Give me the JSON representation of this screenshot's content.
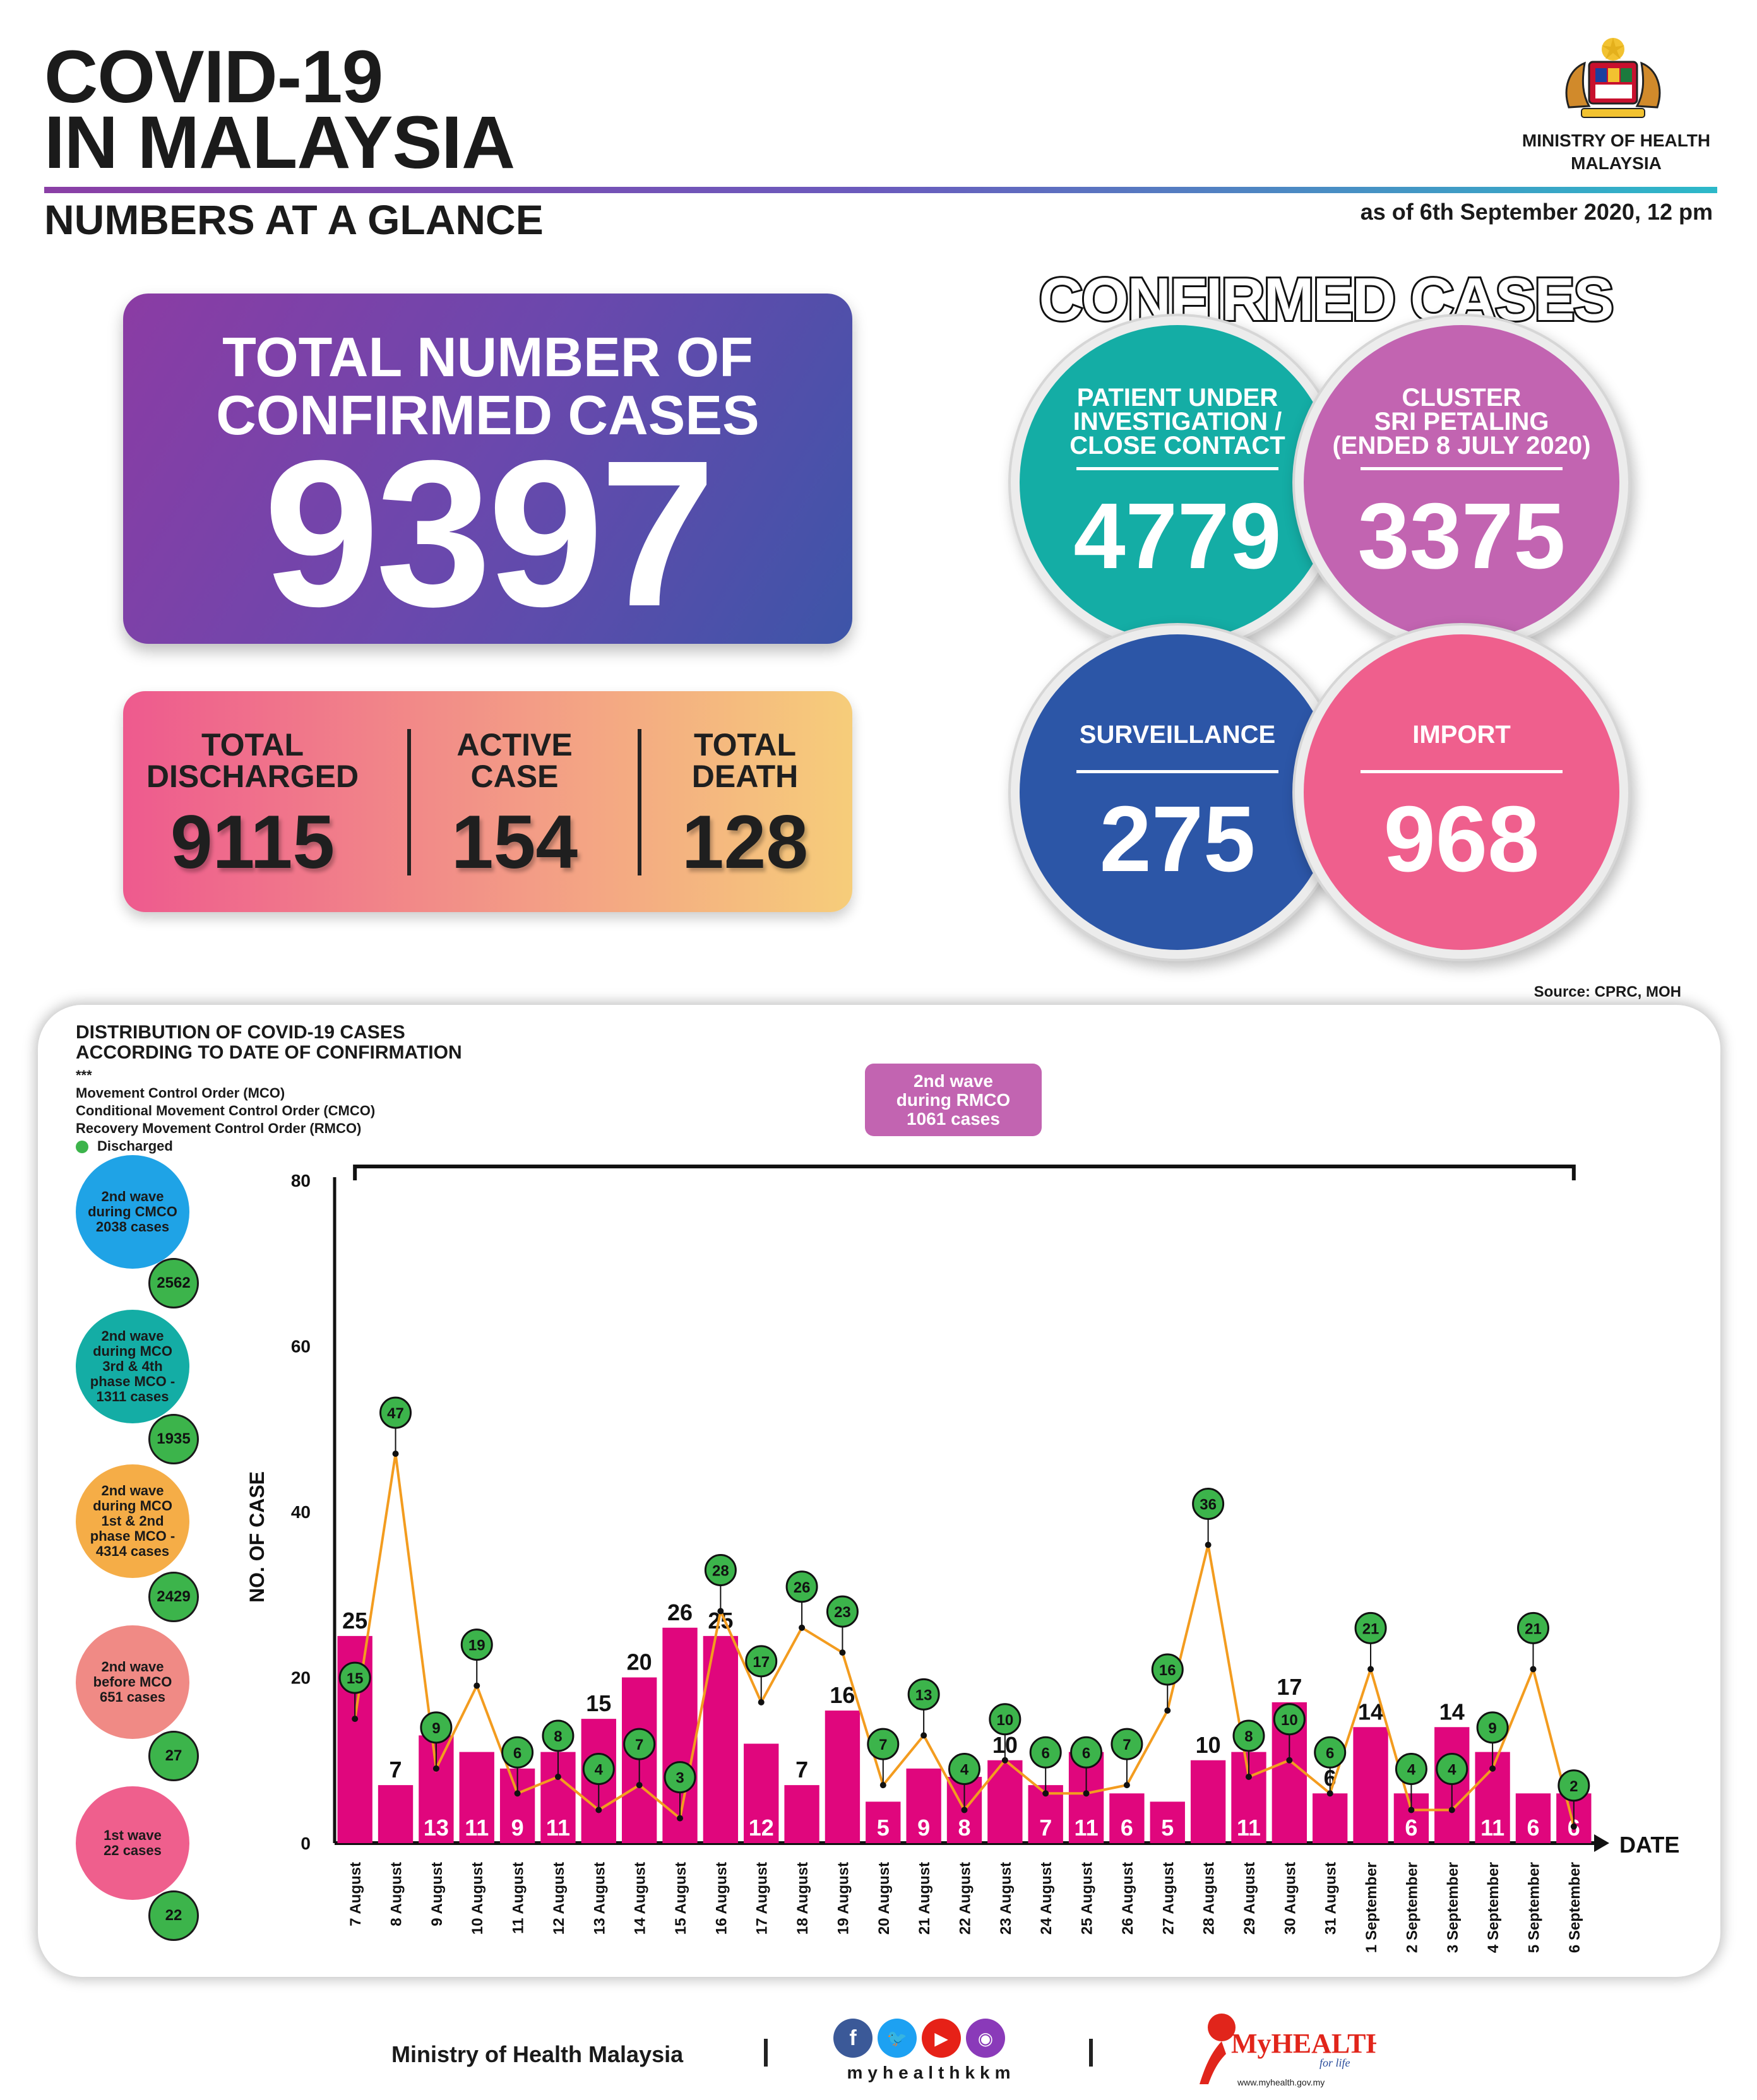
{
  "header": {
    "title": "COVID-19\nIN MALAYSIA",
    "subtitle": "NUMBERS AT A GLANCE",
    "ministry": "MINISTRY OF HEALTH\nMALAYSIA",
    "as_of": "as of 6th September 2020, 12 pm"
  },
  "total": {
    "label": "TOTAL NUMBER OF\nCONFIRMED CASES",
    "value": "9397"
  },
  "stats": [
    {
      "label": "TOTAL\nDISCHARGED",
      "value": "9115"
    },
    {
      "label": "ACTIVE\nCASE",
      "value": "154"
    },
    {
      "label": "TOTAL\nDEATH",
      "value": "128"
    }
  ],
  "confirmed_cases": {
    "title": "CONFIRMED CASES",
    "items": [
      {
        "label": "PATIENT UNDER\nINVESTIGATION /\nCLOSE CONTACT",
        "value": "4779",
        "color": "#14ada5"
      },
      {
        "label": "CLUSTER\nSRI PETALING\n(ENDED 8 JULY 2020)",
        "value": "3375",
        "color": "#c264b1"
      },
      {
        "label": "SURVEILLANCE",
        "value": "275",
        "color": "#2c56a7"
      },
      {
        "label": "IMPORT",
        "value": "968",
        "color": "#ef5f8d"
      }
    ]
  },
  "source": "Source: CPRC, MOH",
  "distribution": {
    "title": "DISTRIBUTION OF COVID-19 CASES\nACCORDING TO DATE OF CONFIRMATION",
    "legend": [
      "***",
      "Movement Control Order (MCO)",
      "Conditional Movement Control Order (CMCO)",
      "Recovery Movement Control Order (RMCO)",
      "Discharged"
    ],
    "waves": [
      {
        "label": "2nd wave\nduring CMCO\n2038 cases",
        "discharged": "2562",
        "color": "#1fa3e6"
      },
      {
        "label": "2nd wave\nduring MCO\n3rd & 4th\nphase MCO -\n1311 cases",
        "discharged": "1935",
        "color": "#14ada5"
      },
      {
        "label": "2nd wave\nduring MCO\n1st & 2nd\nphase MCO -\n4314 cases",
        "discharged": "2429",
        "color": "#f5ad47"
      },
      {
        "label": "2nd wave\nbefore MCO\n651 cases",
        "discharged": "27",
        "color": "#f08a85"
      },
      {
        "label": "1st wave\n22 cases",
        "discharged": "22",
        "color": "#ef5f8d"
      }
    ],
    "rmco_box": "2nd wave\nduring RMCO\n1061 cases"
  },
  "chart_data": {
    "type": "bar",
    "ylabel": "NO. OF CASE",
    "xlabel": "DATE",
    "ylim": [
      0,
      80
    ],
    "yticks": [
      0,
      20,
      40,
      60,
      80
    ],
    "categories": [
      "7 August",
      "8 August",
      "9 August",
      "10 August",
      "11 August",
      "12 August",
      "13 August",
      "14 August",
      "15 August",
      "16 August",
      "17 August",
      "18 August",
      "19 August",
      "20 August",
      "21 August",
      "22 August",
      "23 August",
      "24 August",
      "25 August",
      "26 August",
      "27 August",
      "28 August",
      "29 August",
      "30 August",
      "31 August",
      "1 September",
      "2 September",
      "3 September",
      "4 September",
      "5 September",
      "6 September"
    ],
    "series": [
      {
        "name": "",
        "type": "bar",
        "color": "#e0067d",
        "values": [
          25,
          7,
          13,
          11,
          9,
          11,
          15,
          20,
          26,
          25,
          12,
          7,
          16,
          5,
          9,
          8,
          10,
          7,
          11,
          6,
          5,
          10,
          11,
          17,
          6,
          14,
          6,
          14,
          11,
          6,
          6
        ]
      },
      {
        "name": "Discharged",
        "type": "line",
        "color": "#f39c1f",
        "values": [
          15,
          47,
          9,
          19,
          6,
          8,
          4,
          7,
          3,
          28,
          17,
          26,
          23,
          7,
          13,
          4,
          10,
          6,
          6,
          7,
          16,
          36,
          8,
          10,
          6,
          21,
          4,
          4,
          9,
          21,
          2
        ]
      }
    ]
  },
  "footer": {
    "ministry": "Ministry of Health Malaysia",
    "handle": "myhealthkkm",
    "myhealth": "MyHEALTH",
    "myhealth_tag": "for life",
    "myhealth_url": "www.myhealth.gov.my"
  }
}
